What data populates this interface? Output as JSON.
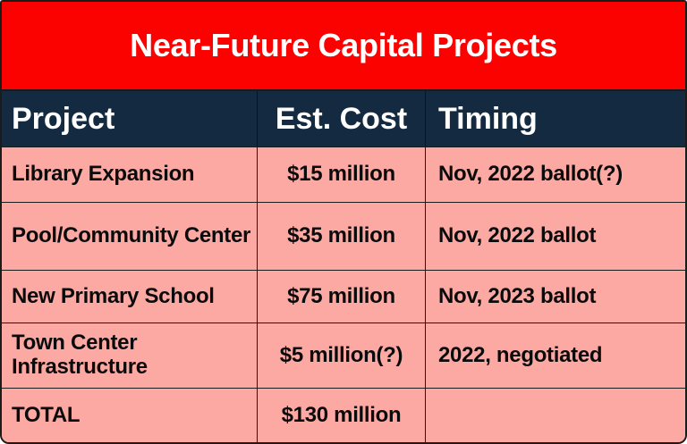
{
  "title": "Near-Future Capital Projects",
  "colors": {
    "banner_red": "#FB0100",
    "header_navy": "#142A40",
    "row_pink": "#FDA9A3",
    "grid_line": "#1C1C1C",
    "banner_text": "#FFFFFF",
    "header_text": "#FFFFFF",
    "body_text": "#0B0B0B"
  },
  "table": {
    "headers": [
      "Project",
      "Est. Cost",
      "Timing"
    ],
    "rows": [
      {
        "project": "Library Expansion",
        "cost": "$15 million",
        "timing": "Nov, 2022 ballot(?)"
      },
      {
        "project": "Pool/Community Center",
        "cost": "$35 million",
        "timing": "Nov, 2022 ballot"
      },
      {
        "project": "New Primary School",
        "cost": "$75 million",
        "timing": "Nov, 2023 ballot"
      },
      {
        "project": "Town Center Infrastructure",
        "cost": "$5 million(?)",
        "timing": "2022, negotiated"
      },
      {
        "project": "TOTAL",
        "cost": "$130 million",
        "timing": ""
      }
    ]
  },
  "chart_data": {
    "type": "table",
    "title": "Near-Future Capital Projects",
    "columns": [
      "Project",
      "Est. Cost",
      "Timing"
    ],
    "rows": [
      [
        "Library Expansion",
        "$15 million",
        "Nov, 2022 ballot(?)"
      ],
      [
        "Pool/Community Center",
        "$35 million",
        "Nov, 2022 ballot"
      ],
      [
        "New Primary School",
        "$75 million",
        "Nov, 2023 ballot"
      ],
      [
        "Town Center Infrastructure",
        "$5 million(?)",
        "2022, negotiated"
      ],
      [
        "TOTAL",
        "$130 million",
        ""
      ]
    ],
    "cost_values_millions": [
      15,
      35,
      75,
      5
    ],
    "total_millions": 130
  }
}
